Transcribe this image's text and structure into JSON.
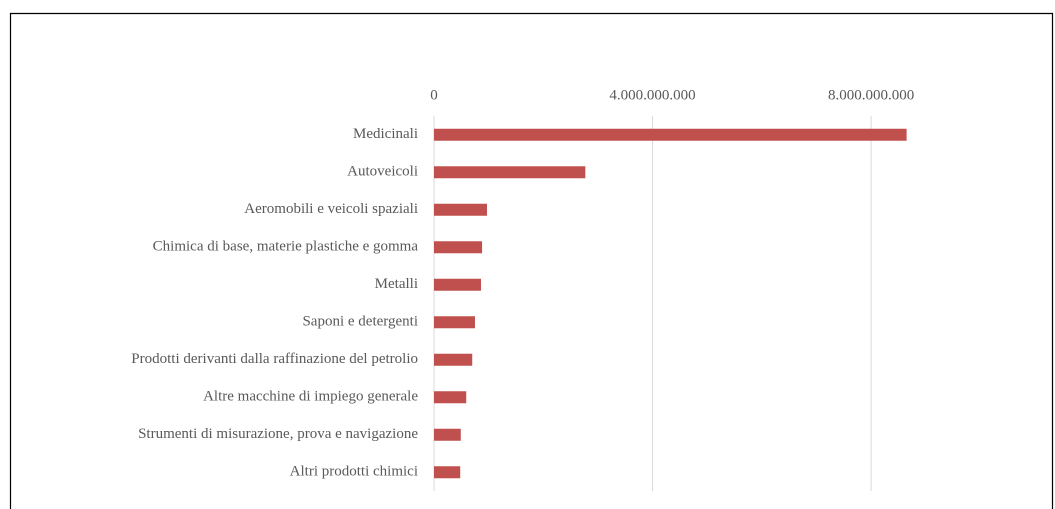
{
  "chart_data": {
    "type": "bar",
    "orientation": "horizontal",
    "categories": [
      "Medicinali",
      "Autoveicoli",
      "Aeromobili e veicoli spaziali",
      "Chimica di base, materie plastiche e gomma",
      "Metalli",
      "Saponi e detergenti",
      "Prodotti derivanti dalla raffinazione del petrolio",
      "Altre macchine di impiego generale",
      "Strumenti di misurazione, prova e navigazione",
      "Altri prodotti chimici"
    ],
    "values": [
      8650000000,
      2770000000,
      970000000,
      880000000,
      860000000,
      750000000,
      700000000,
      590000000,
      490000000,
      480000000
    ],
    "color": "#c0504d",
    "xlim": [
      0,
      11000000000
    ],
    "xticks": [
      0,
      {
        "value": 4000000000,
        "label": "4.000.000.000"
      },
      {
        "value": 8000000000,
        "label": "8.000.000.000"
      }
    ],
    "grid": true
  }
}
